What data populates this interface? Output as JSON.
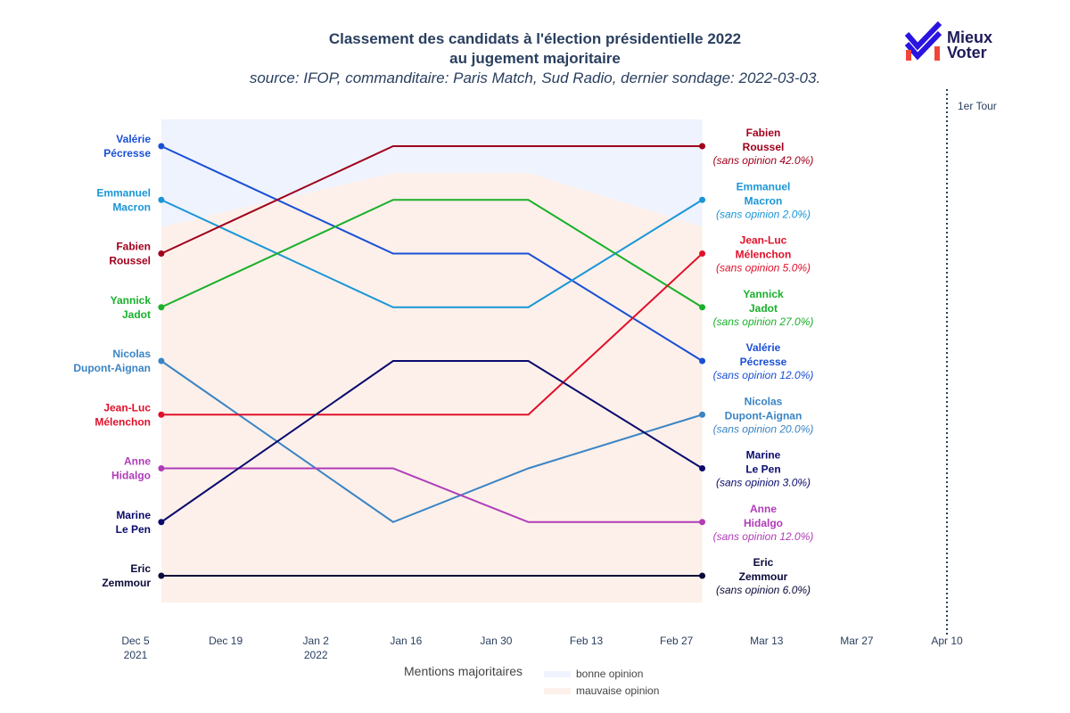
{
  "title": {
    "line1": "Classement des candidats à l'élection présidentielle 2022",
    "line2": "au jugement majoritaire",
    "subtitle": "source: IFOP, commanditaire: Paris Match, Sud Radio, dernier sondage: 2022-03-03."
  },
  "logo": {
    "line1": "Mieux",
    "line2": "Voter",
    "icon": "mieux-voter-check-icon"
  },
  "legend": {
    "title": "Mentions majoritaires",
    "items": [
      {
        "label": "bonne opinion",
        "color": "#eef3fd"
      },
      {
        "label": "mauvaise opinion",
        "color": "#fdf0ea"
      }
    ]
  },
  "chart_data": {
    "type": "line",
    "y_meaning": "rang (1 = premier)",
    "x_axis": {
      "ticks": [
        "Dec 5\n2021",
        "Dec 19",
        "Jan 2\n2022",
        "Jan 16",
        "Jan 30",
        "Feb 13",
        "Feb 27",
        "Mar 13",
        "Mar 27",
        "Apr 10"
      ],
      "tick_dates": [
        "2021-12-05",
        "2021-12-19",
        "2022-01-02",
        "2022-01-16",
        "2022-01-30",
        "2022-02-13",
        "2022-02-27",
        "2022-03-13",
        "2022-03-27",
        "2022-04-10"
      ],
      "range": [
        "2021-12-05",
        "2022-04-10"
      ]
    },
    "poll_dates": [
      "2021-12-09",
      "2022-01-14",
      "2022-02-04",
      "2022-03-03"
    ],
    "first_round": {
      "date": "2022-04-10",
      "label": "1er Tour"
    },
    "series": [
      {
        "name": "Valérie\nPécresse",
        "color": "#1a4fd6",
        "ranks": [
          1,
          3,
          3,
          5
        ],
        "end_note": "(sans opinion 12.0%)"
      },
      {
        "name": "Emmanuel\nMacron",
        "color": "#1a96d6",
        "ranks": [
          2,
          4,
          4,
          2
        ],
        "end_note": "(sans opinion 2.0%)"
      },
      {
        "name": "Fabien\nRoussel",
        "color": "#a0001c",
        "ranks": [
          3,
          1,
          1,
          1
        ],
        "end_note": "(sans opinion 42.0%)"
      },
      {
        "name": "Yannick\nJadot",
        "color": "#19b02a",
        "ranks": [
          4,
          2,
          2,
          4
        ],
        "end_note": "(sans opinion 27.0%)"
      },
      {
        "name": "Nicolas\nDupont-Aignan",
        "color": "#3a84c4",
        "ranks": [
          5,
          8,
          7,
          6
        ],
        "end_note": "(sans opinion 20.0%)"
      },
      {
        "name": "Jean-Luc\nMélenchon",
        "color": "#e0102a",
        "ranks": [
          6,
          6,
          6,
          3
        ],
        "end_note": "(sans opinion 5.0%)"
      },
      {
        "name": "Anne\nHidalgo",
        "color": "#b03cb8",
        "ranks": [
          7,
          7,
          8,
          8
        ],
        "end_note": "(sans opinion 12.0%)"
      },
      {
        "name": "Marine\nLe Pen",
        "color": "#0a0a6e",
        "ranks": [
          8,
          5,
          5,
          7
        ],
        "end_note": "(sans opinion 3.0%)"
      },
      {
        "name": "Eric\nZemmour",
        "color": "#0a0a3a",
        "ranks": [
          9,
          9,
          9,
          9
        ],
        "end_note": "(sans opinion 6.0%)"
      }
    ],
    "mention_bands": {
      "good_color": "#eef3fd",
      "bad_color": "#fdf0ea",
      "good_down_to_rank": [
        2.5,
        1.5,
        1.5,
        2.5
      ],
      "bad_down_to_rank": 9.5
    },
    "grid": false
  }
}
